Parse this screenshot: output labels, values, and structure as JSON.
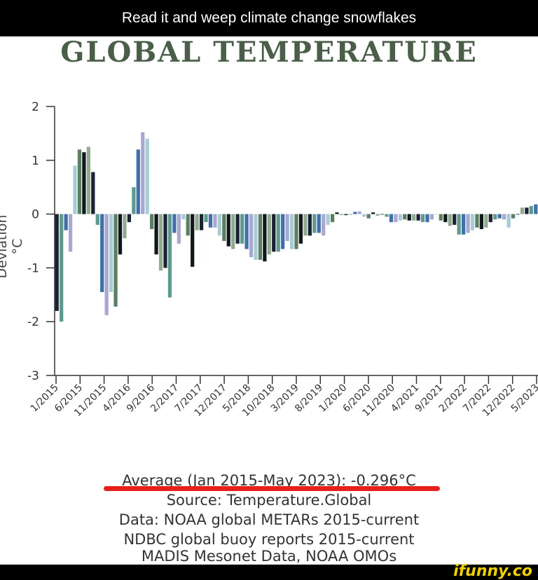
{
  "post_title": "Read it and weep climate change snowflakes",
  "watermark": "ifunny.co",
  "footer": {
    "average": "Average (Jan 2015-May 2023): -0.296°C",
    "source": "Source: Temperature.Global",
    "data1": "Data:  NOAA global METARs 2015-current",
    "data2": "NDBC global buoy reports 2015-current",
    "data3": "MADIS Mesonet Data, NOAA OMOs"
  },
  "chart_data": {
    "type": "bar",
    "title": "GLOBAL TEMPERATURE",
    "xlabel": "",
    "ylabel": "Deviation °C",
    "ylim": [
      -3,
      2
    ],
    "yticks": [
      2,
      1,
      0,
      -1,
      -2,
      -3
    ],
    "xticks": [
      "1/2015",
      "6/2015",
      "11/2015",
      "4/2016",
      "9/2016",
      "2/2017",
      "7/2017",
      "12/2017",
      "5/2018",
      "10/2018",
      "3/2019",
      "8/2019",
      "1/2020",
      "6/2020",
      "11/2020",
      "4/2021",
      "9/2021",
      "2/2022",
      "7/2022",
      "12/2022",
      "5/2023"
    ],
    "grid": false,
    "legend": "none",
    "palette": [
      "#1a2233",
      "#5e9a8e",
      "#3f70aa",
      "#a8a8d0",
      "#a8ccd4",
      "#5c7e62",
      "#10181c",
      "#92aa90"
    ],
    "values": [
      -1.8,
      -2.0,
      -0.3,
      -0.7,
      0.9,
      1.2,
      1.15,
      1.25,
      0.78,
      -0.2,
      -1.45,
      -1.88,
      -1.45,
      -1.72,
      -0.75,
      -0.45,
      -0.15,
      0.5,
      1.2,
      1.52,
      1.4,
      -0.28,
      -0.75,
      -1.05,
      -1.0,
      -1.55,
      -0.35,
      -0.55,
      -0.1,
      -0.4,
      -0.98,
      -0.3,
      -0.3,
      -0.15,
      -0.25,
      -0.25,
      -0.4,
      -0.5,
      -0.6,
      -0.65,
      -0.55,
      -0.55,
      -0.65,
      -0.8,
      -0.85,
      -0.85,
      -0.88,
      -0.75,
      -0.7,
      -0.7,
      -0.65,
      -0.5,
      -0.65,
      -0.65,
      -0.55,
      -0.4,
      -0.4,
      -0.35,
      -0.35,
      -0.4,
      -0.2,
      -0.15,
      0.03,
      -0.02,
      -0.02,
      0.0,
      0.04,
      0.05,
      -0.05,
      -0.08,
      0.03,
      -0.03,
      0.0,
      -0.05,
      -0.15,
      -0.15,
      -0.12,
      -0.1,
      -0.12,
      -0.12,
      -0.12,
      -0.15,
      -0.15,
      -0.1,
      0.0,
      -0.12,
      -0.15,
      -0.22,
      -0.2,
      -0.38,
      -0.38,
      -0.35,
      -0.3,
      -0.25,
      -0.28,
      -0.25,
      -0.15,
      -0.1,
      -0.08,
      -0.1,
      -0.25,
      -0.08,
      0.0,
      0.12,
      0.12,
      0.15,
      0.18
    ]
  }
}
